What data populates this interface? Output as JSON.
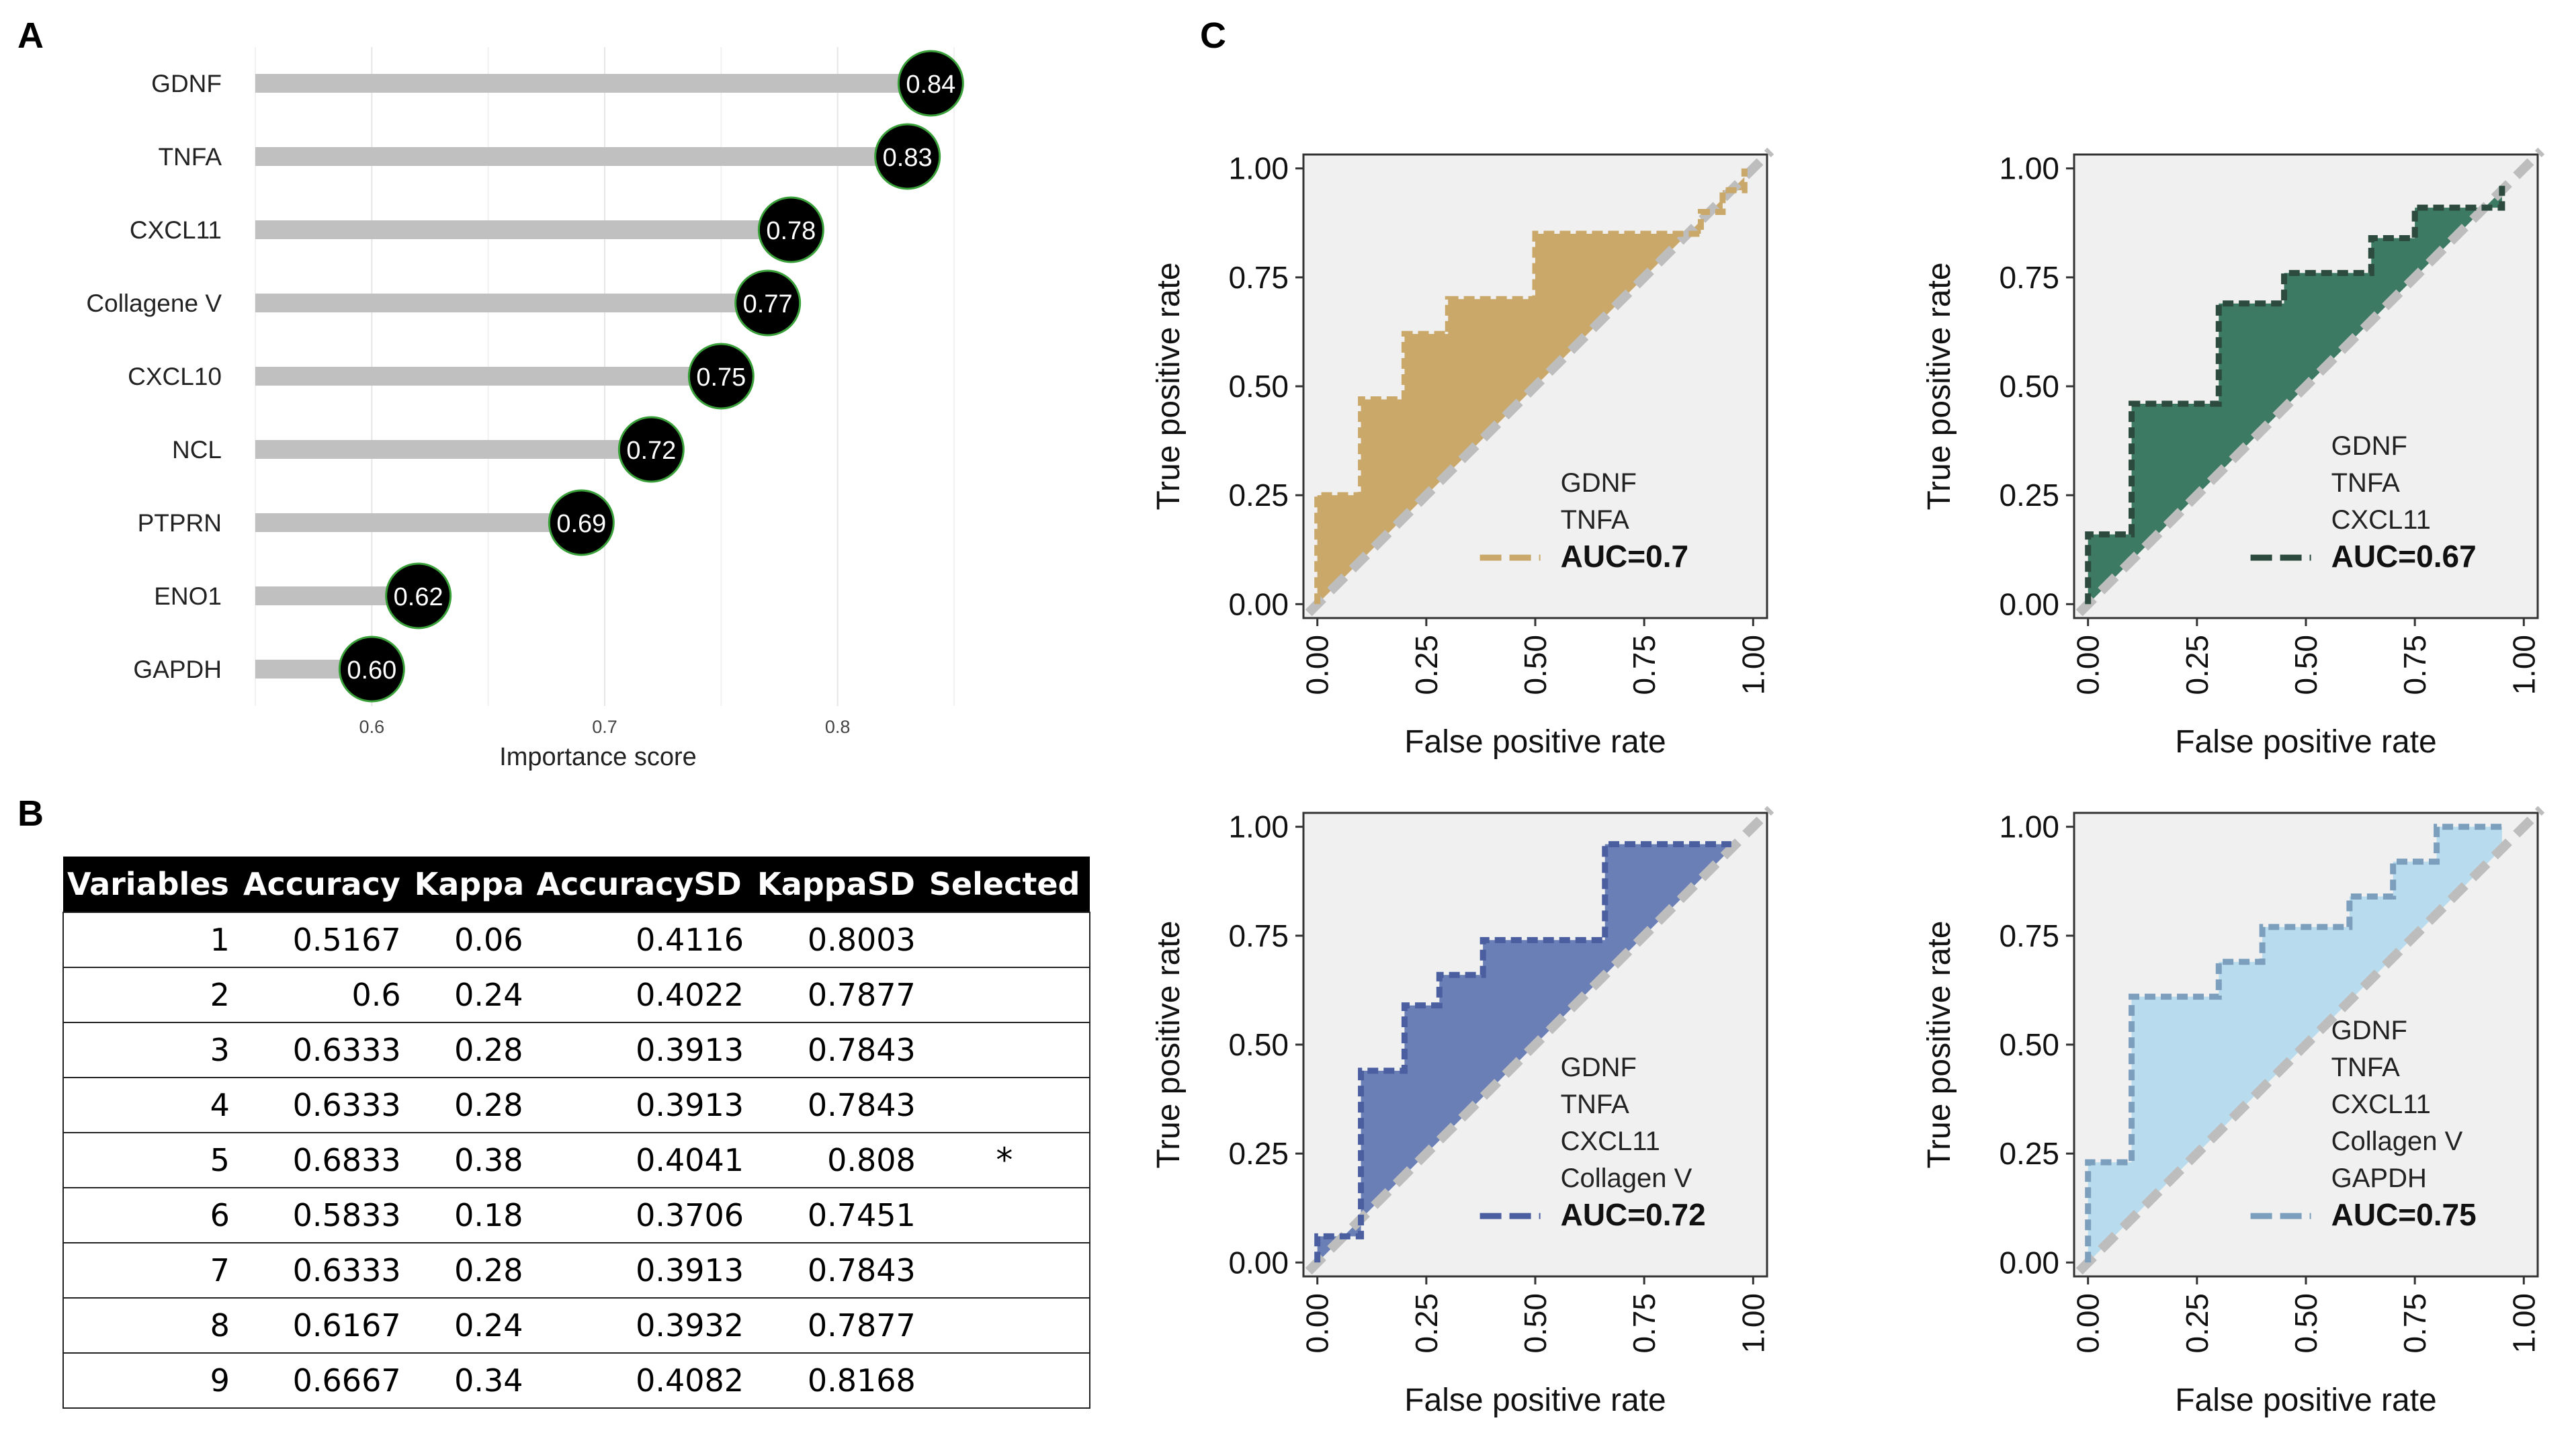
{
  "panels": {
    "a": "A",
    "b": "B",
    "c": "C"
  },
  "colors": {
    "bar": "#c0c0c0",
    "dot": "#000000",
    "dot_outline": "#3aa13a",
    "grid": "#e6e6e6",
    "roc_bg": "#f0f0f0",
    "diag": "#bdbdbd"
  },
  "chart_data": [
    {
      "type": "bar",
      "orientation": "horizontal",
      "style": "lollipop",
      "categories": [
        "GDNF",
        "TNFA",
        "CXCL11",
        "Collagene V",
        "CXCL10",
        "NCL",
        "PTPRN",
        "ENO1",
        "GAPDH"
      ],
      "values": [
        0.84,
        0.83,
        0.78,
        0.77,
        0.75,
        0.72,
        0.69,
        0.62,
        0.6
      ],
      "value_labels": [
        "0.84",
        "0.83",
        "0.78",
        "0.77",
        "0.75",
        "0.72",
        "0.69",
        "0.62",
        "0.60"
      ],
      "xlabel": "Importance score",
      "xticks": [
        "0.6",
        "0.7",
        "0.8"
      ],
      "xlim": [
        0.55,
        0.85
      ],
      "bar_start": 0.55
    },
    {
      "type": "line",
      "title": "",
      "xlabel": "False positive rate",
      "ylabel": "True positive rate",
      "ticks": [
        "0.00",
        "0.25",
        "0.50",
        "0.75",
        "1.00"
      ],
      "xlim": [
        0,
        1
      ],
      "ylim": [
        0,
        1
      ],
      "legend_vars": [
        "GDNF",
        "TNFA"
      ],
      "auc_label": "AUC=0.7",
      "color": "#c9a86a",
      "line_color": "#c9a86a",
      "x": [
        0.0,
        0.0,
        0.03,
        0.03,
        0.1,
        0.1,
        0.2,
        0.2,
        0.3,
        0.3,
        0.5,
        0.5,
        0.6,
        0.85,
        0.88,
        0.88,
        0.93,
        0.93,
        0.98,
        0.98
      ],
      "y": [
        0.0,
        0.25,
        0.25,
        0.25,
        0.25,
        0.47,
        0.47,
        0.62,
        0.62,
        0.7,
        0.7,
        0.85,
        0.85,
        0.85,
        0.85,
        0.9,
        0.9,
        0.95,
        0.95,
        1.0
      ]
    },
    {
      "type": "line",
      "title": "",
      "xlabel": "False positive rate",
      "ylabel": "True positive rate",
      "ticks": [
        "0.00",
        "0.25",
        "0.50",
        "0.75",
        "1.00"
      ],
      "xlim": [
        0,
        1
      ],
      "ylim": [
        0,
        1
      ],
      "legend_vars": [
        "GDNF",
        "TNFA",
        "CXCL11"
      ],
      "auc_label": "AUC=0.67",
      "color": "#3d7a63",
      "line_color": "#2c4a3e",
      "x": [
        0.0,
        0.0,
        0.1,
        0.1,
        0.3,
        0.3,
        0.45,
        0.45,
        0.65,
        0.65,
        0.75,
        0.75,
        0.95,
        0.95
      ],
      "y": [
        0.0,
        0.16,
        0.16,
        0.46,
        0.46,
        0.69,
        0.69,
        0.76,
        0.76,
        0.84,
        0.84,
        0.91,
        0.91,
        0.96
      ]
    },
    {
      "type": "line",
      "title": "",
      "xlabel": "False positive rate",
      "ylabel": "True positive rate",
      "ticks": [
        "0.00",
        "0.25",
        "0.50",
        "0.75",
        "1.00"
      ],
      "xlim": [
        0,
        1
      ],
      "ylim": [
        0,
        1
      ],
      "legend_vars": [
        "GDNF",
        "TNFA",
        "CXCL11",
        "Collagen V"
      ],
      "auc_label": "AUC=0.72",
      "color": "#6a7fb6",
      "line_color": "#4a5ea0",
      "x": [
        0.0,
        0.0,
        0.1,
        0.1,
        0.2,
        0.2,
        0.28,
        0.28,
        0.38,
        0.38,
        0.66,
        0.66,
        0.95
      ],
      "y": [
        0.0,
        0.06,
        0.06,
        0.44,
        0.44,
        0.59,
        0.59,
        0.66,
        0.66,
        0.74,
        0.74,
        0.96,
        0.96
      ]
    },
    {
      "type": "line",
      "title": "",
      "xlabel": "False positive rate",
      "ylabel": "True positive rate",
      "ticks": [
        "0.00",
        "0.25",
        "0.50",
        "0.75",
        "1.00"
      ],
      "xlim": [
        0,
        1
      ],
      "ylim": [
        0,
        1
      ],
      "legend_vars": [
        "GDNF",
        "TNFA",
        "CXCL11",
        "Collagen V",
        "GAPDH"
      ],
      "auc_label": "AUC=0.75",
      "color": "#b8dcee",
      "line_color": "#7d9fbe",
      "x": [
        0.0,
        0.0,
        0.1,
        0.1,
        0.3,
        0.3,
        0.4,
        0.4,
        0.6,
        0.6,
        0.7,
        0.7,
        0.8,
        0.8,
        0.95
      ],
      "y": [
        0.0,
        0.23,
        0.23,
        0.61,
        0.61,
        0.69,
        0.69,
        0.77,
        0.77,
        0.84,
        0.84,
        0.92,
        0.92,
        1.0,
        1.0
      ]
    }
  ],
  "table": {
    "headers": [
      "Variables",
      "Accuracy",
      "Kappa",
      "AccuracySD",
      "KappaSD",
      "Selected"
    ],
    "rows": [
      [
        "1",
        "0.5167",
        "0.06",
        "0.4116",
        "0.8003",
        ""
      ],
      [
        "2",
        "0.6",
        "0.24",
        "0.4022",
        "0.7877",
        ""
      ],
      [
        "3",
        "0.6333",
        "0.28",
        "0.3913",
        "0.7843",
        ""
      ],
      [
        "4",
        "0.6333",
        "0.28",
        "0.3913",
        "0.7843",
        ""
      ],
      [
        "5",
        "0.6833",
        "0.38",
        "0.4041",
        "0.808",
        "*"
      ],
      [
        "6",
        "0.5833",
        "0.18",
        "0.3706",
        "0.7451",
        ""
      ],
      [
        "7",
        "0.6333",
        "0.28",
        "0.3913",
        "0.7843",
        ""
      ],
      [
        "8",
        "0.6167",
        "0.24",
        "0.3932",
        "0.7877",
        ""
      ],
      [
        "9",
        "0.6667",
        "0.34",
        "0.4082",
        "0.8168",
        ""
      ]
    ]
  }
}
